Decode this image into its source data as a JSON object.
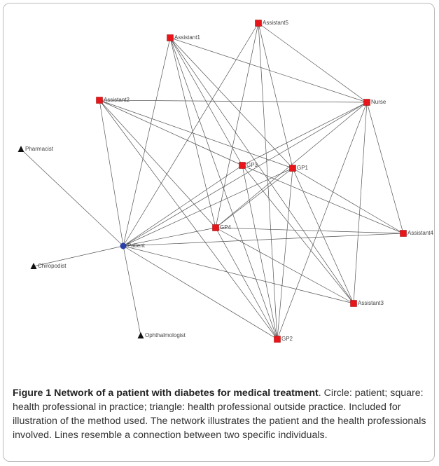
{
  "nodes": [
    {
      "label": "Assistant5",
      "shape": "square"
    },
    {
      "label": "Assistant1",
      "shape": "square"
    },
    {
      "label": "Assistant2",
      "shape": "square"
    },
    {
      "label": "Nurse",
      "shape": "square"
    },
    {
      "label": "Pharmacist",
      "shape": "triangle"
    },
    {
      "label": "GP3",
      "shape": "square"
    },
    {
      "label": "GP1",
      "shape": "square"
    },
    {
      "label": "GP4",
      "shape": "square"
    },
    {
      "label": "Assistant4",
      "shape": "square"
    },
    {
      "label": "Patient",
      "shape": "circle"
    },
    {
      "label": "Chiropodist",
      "shape": "triangle"
    },
    {
      "label": "Assistant3",
      "shape": "square"
    },
    {
      "label": "Ophthalmologist",
      "shape": "triangle"
    },
    {
      "label": "GP2",
      "shape": "square"
    }
  ],
  "edges": [
    [
      9,
      4
    ],
    [
      9,
      10
    ],
    [
      9,
      12
    ],
    [
      9,
      2
    ],
    [
      9,
      0
    ],
    [
      9,
      8
    ],
    [
      9,
      11
    ],
    [
      9,
      13
    ],
    [
      9,
      6
    ],
    [
      9,
      5
    ],
    [
      9,
      3
    ],
    [
      9,
      7
    ],
    [
      9,
      1
    ],
    [
      1,
      3
    ],
    [
      1,
      6
    ],
    [
      1,
      5
    ],
    [
      1,
      7
    ],
    [
      1,
      11
    ],
    [
      1,
      13
    ],
    [
      0,
      3
    ],
    [
      0,
      7
    ],
    [
      0,
      6
    ],
    [
      0,
      13
    ],
    [
      2,
      3
    ],
    [
      2,
      5
    ],
    [
      2,
      6
    ],
    [
      2,
      7
    ],
    [
      2,
      13
    ],
    [
      3,
      5
    ],
    [
      3,
      7
    ],
    [
      3,
      13
    ],
    [
      3,
      8
    ],
    [
      3,
      11
    ],
    [
      5,
      13
    ],
    [
      5,
      11
    ],
    [
      5,
      8
    ],
    [
      6,
      7
    ],
    [
      6,
      13
    ],
    [
      6,
      8
    ],
    [
      6,
      11
    ],
    [
      7,
      8
    ],
    [
      7,
      11
    ],
    [
      7,
      13
    ]
  ],
  "caption": {
    "title": "Figure 1 Network of a patient with diabetes for medical treatment",
    "text": ". Circle: patient; square: health professional in practice; triangle: health professional outside practice. Included for illustration of the method used. The network illustrates the patient and the health professionals involved. Lines resemble a connection between two specific individuals."
  }
}
